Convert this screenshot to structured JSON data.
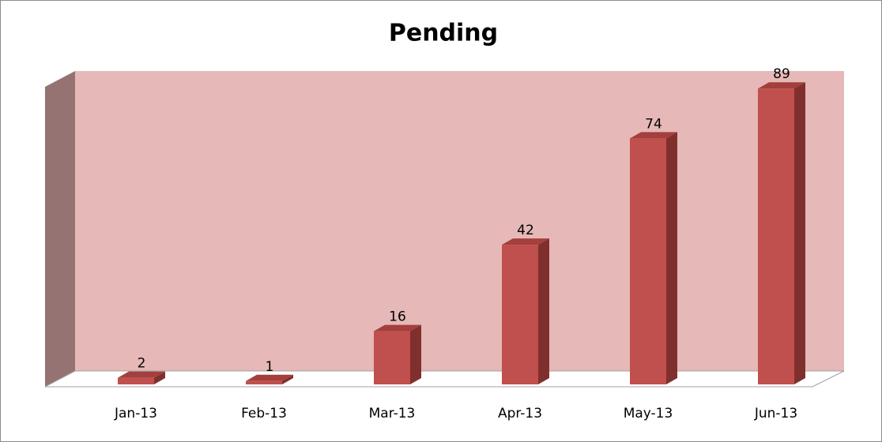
{
  "chart_data": {
    "type": "bar",
    "title": "Pending",
    "categories": [
      "Jan-13",
      "Feb-13",
      "Mar-13",
      "Apr-13",
      "May-13",
      "Jun-13"
    ],
    "values": [
      2,
      1,
      16,
      42,
      74,
      89
    ],
    "color": "#c0504d",
    "ylim": [
      0,
      90
    ]
  }
}
